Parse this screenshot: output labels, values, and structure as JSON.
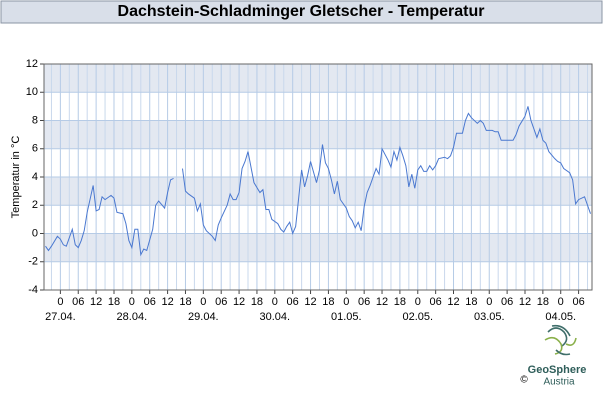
{
  "chart_data": {
    "type": "line",
    "title": "Dachstein-Schladminger Gletscher - Temperatur",
    "y_label": "Temperatur in °C",
    "color": "#4a78d0",
    "x": [
      -5,
      -4,
      -3,
      -1,
      0,
      1,
      2,
      4,
      5,
      6,
      7,
      8,
      9,
      11,
      12,
      13,
      14,
      15,
      17,
      18,
      19,
      21,
      22,
      23,
      24,
      25,
      26,
      27,
      28,
      29,
      31,
      32,
      33,
      35,
      36,
      37,
      38,
      39,
      41,
      42,
      43,
      45,
      46,
      47,
      48,
      49,
      51,
      52,
      53,
      54,
      56,
      57,
      58,
      59,
      60,
      61,
      62,
      63,
      64,
      65,
      67,
      68,
      69,
      70,
      71,
      73,
      74,
      75,
      76,
      77,
      78,
      79,
      81,
      82,
      83,
      84,
      86,
      87,
      88,
      89,
      90,
      91,
      92,
      93,
      94,
      96,
      97,
      98,
      99,
      100,
      101,
      102,
      103,
      104,
      105,
      106,
      107,
      108,
      110,
      111,
      112,
      113,
      114,
      115,
      116,
      117,
      118,
      119,
      120,
      121,
      122,
      123,
      124,
      125,
      126,
      127,
      129,
      130,
      131,
      132,
      133,
      135,
      136,
      137,
      138,
      140,
      141,
      142,
      143,
      145,
      146,
      147,
      148,
      149,
      151,
      152,
      153,
      154,
      156,
      157,
      158,
      159,
      160,
      161,
      162,
      163,
      164,
      166,
      167,
      168,
      169,
      171,
      172,
      173,
      174,
      176,
      177,
      178
    ],
    "values": [
      -0.9,
      -1.2,
      -0.9,
      -0.2,
      -0.4,
      -0.8,
      -0.9,
      0.3,
      -0.8,
      -1.0,
      -0.5,
      0.2,
      1.5,
      3.4,
      1.6,
      1.7,
      2.6,
      2.4,
      2.7,
      2.5,
      1.5,
      1.4,
      0.7,
      -0.5,
      -1.0,
      0.3,
      0.3,
      -1.5,
      -1.1,
      -1.2,
      0.3,
      2.0,
      2.3,
      1.8,
      2.9,
      3.8,
      3.9,
      null,
      4.6,
      3.0,
      2.8,
      2.5,
      1.6,
      2.1,
      0.6,
      0.2,
      -0.2,
      -0.5,
      0.6,
      1.1,
      2.0,
      2.8,
      2.4,
      2.4,
      2.9,
      4.6,
      5.1,
      5.8,
      4.7,
      3.6,
      2.9,
      3.1,
      1.7,
      1.7,
      1.0,
      0.7,
      0.3,
      0.1,
      0.5,
      0.8,
      0.0,
      0.5,
      4.5,
      3.3,
      4.1,
      5.1,
      3.6,
      4.5,
      6.3,
      5.0,
      4.6,
      3.8,
      2.8,
      3.7,
      2.4,
      1.8,
      1.2,
      0.9,
      0.4,
      0.8,
      0.2,
      1.9,
      2.9,
      3.4,
      4.0,
      4.6,
      4.2,
      6.0,
      5.2,
      4.7,
      5.8,
      5.2,
      6.1,
      5.5,
      4.8,
      3.3,
      4.2,
      3.2,
      4.5,
      4.8,
      4.4,
      4.4,
      4.8,
      4.5,
      4.8,
      5.3,
      5.4,
      5.3,
      5.5,
      6.1,
      7.1,
      7.1,
      8.0,
      8.5,
      8.2,
      7.8,
      8.0,
      7.8,
      7.3,
      7.3,
      7.2,
      7.2,
      6.6,
      6.6,
      6.6,
      6.6,
      7.0,
      7.6,
      8.3,
      9.0,
      8.0,
      7.4,
      6.8,
      7.4,
      6.6,
      6.4,
      5.8,
      5.3,
      5.1,
      5.0,
      4.6,
      4.3,
      3.8,
      2.1,
      2.4,
      2.6,
      2.0,
      1.4
    ],
    "xlim": [
      -5.5,
      178.5
    ],
    "xticks": [
      0,
      {
        "value": 6,
        "label": "06"
      },
      12,
      18,
      {
        "value": 24,
        "label": "0"
      },
      {
        "value": 30,
        "label": "06"
      },
      {
        "value": 36,
        "label": "12"
      },
      {
        "value": 42,
        "label": "18"
      },
      {
        "value": 48,
        "label": "0"
      },
      {
        "value": 54,
        "label": "06"
      },
      {
        "value": 60,
        "label": "12"
      },
      {
        "value": 66,
        "label": "18"
      },
      {
        "value": 72,
        "label": "0"
      },
      {
        "value": 78,
        "label": "06"
      },
      {
        "value": 84,
        "label": "12"
      },
      {
        "value": 90,
        "label": "18"
      },
      {
        "value": 96,
        "label": "0"
      },
      {
        "value": 102,
        "label": "06"
      },
      {
        "value": 108,
        "label": "12"
      },
      {
        "value": 114,
        "label": "18"
      },
      {
        "value": 120,
        "label": "0"
      },
      {
        "value": 126,
        "label": "06"
      },
      {
        "value": 132,
        "label": "12"
      },
      {
        "value": 138,
        "label": "18"
      },
      {
        "value": 144,
        "label": "0"
      },
      {
        "value": 150,
        "label": "06"
      },
      {
        "value": 156,
        "label": "12"
      },
      {
        "value": 162,
        "label": "18"
      },
      {
        "value": 168,
        "label": "0"
      },
      {
        "value": 174,
        "label": "06"
      }
    ],
    "x_groups": [
      {
        "value": 0,
        "label": "27.04."
      },
      {
        "value": 24,
        "label": "28.04."
      },
      {
        "value": 48,
        "label": "29.04."
      },
      {
        "value": 72,
        "label": "30.04."
      },
      {
        "value": 96,
        "label": "01.05."
      },
      {
        "value": 120,
        "label": "02.05."
      },
      {
        "value": 144,
        "label": "03.05."
      },
      {
        "value": 168,
        "label": "04.05."
      }
    ],
    "ylim": [
      -4,
      12
    ],
    "yticks": [
      -4,
      -2,
      0,
      2,
      4,
      6,
      8,
      10,
      12
    ],
    "grid": true
  },
  "logo": {
    "name": "GeoSphere",
    "sub": "Austria",
    "copyright": "©"
  }
}
